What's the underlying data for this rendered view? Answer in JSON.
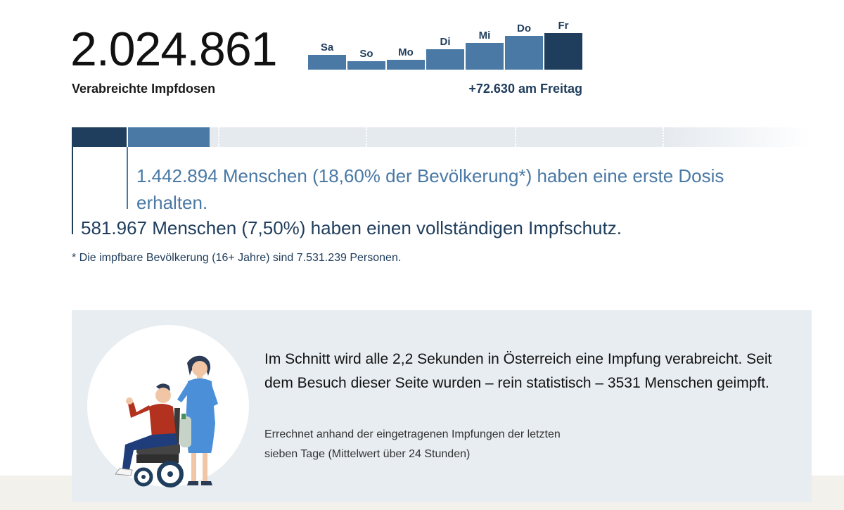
{
  "summary": {
    "total_doses": "2.024.861",
    "total_label": "Verabreichte Impfdosen"
  },
  "chart_data": {
    "type": "bar",
    "categories": [
      "Sa",
      "So",
      "Mo",
      "Di",
      "Mi",
      "Do",
      "Fr"
    ],
    "values": [
      21,
      12,
      14,
      29,
      38,
      48,
      52
    ],
    "highlight": "Fr",
    "caption": "+72.630 am Freitag",
    "colors": {
      "default": "#4a79a5",
      "highlight": "#1f3d5c"
    }
  },
  "progress": {
    "first_dose_pct": 18.6,
    "full_pct": 7.5,
    "first_dose_text": "1.442.894 Menschen (18,60% der Bevölkerung*) haben eine erste Dosis erhalten.",
    "full_text": "581.967 Menschen (7,50%) haben einen vollständigen Impfschutz.",
    "footnote": "* Die impfbare Bevölkerung (16+ Jahre) sind 7.531.239 Personen.",
    "colors": {
      "full": "#1f3d5c",
      "first": "#4a79a5",
      "track": "#e5eaef"
    }
  },
  "info": {
    "main_text": "Im Schnitt wird alle 2,2 Sekunden in Österreich eine Impfung verabreicht. Seit dem Besuch dieser Seite wurden – rein statistisch – 3531 Menschen geimpft.",
    "note_text": "Errechnet anhand der eingetragenen Impfungen der letzten sieben Tage (Mittelwert über 24 Stunden)"
  }
}
